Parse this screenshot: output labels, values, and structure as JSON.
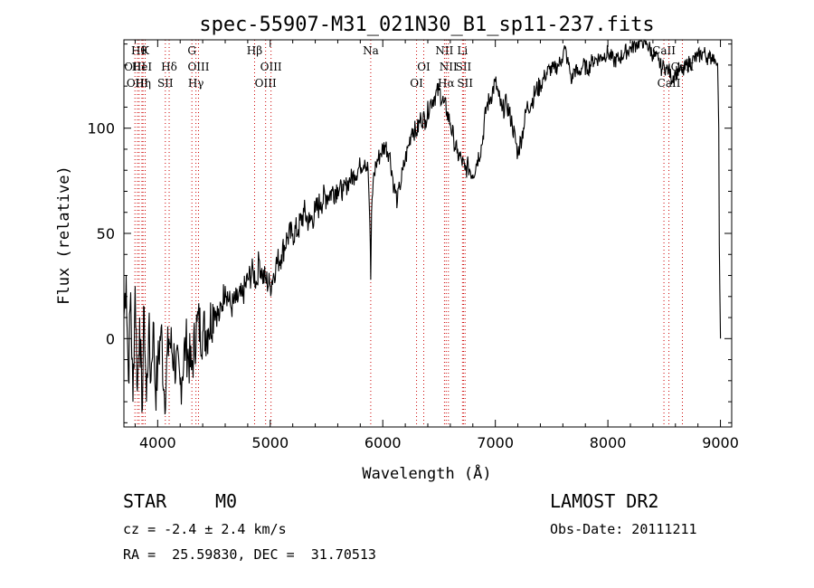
{
  "chart_data": {
    "type": "line",
    "title": "spec-55907-M31_021N30_B1_sp11-237.fits",
    "xlabel": "Wavelength (Å)",
    "ylabel": "Flux (relative)",
    "xlim": [
      3700,
      9100
    ],
    "ylim": [
      -42,
      142
    ],
    "xticks": [
      4000,
      5000,
      6000,
      7000,
      8000,
      9000
    ],
    "yticks": [
      0,
      50,
      100
    ],
    "grid": false,
    "line_color": "#000000",
    "marker_color": "#cc0000",
    "series": [
      {
        "x": [
          3700,
          3720,
          3740,
          3760,
          3780,
          3800,
          3820,
          3840,
          3860,
          3880,
          3900,
          3920,
          3940,
          3960,
          3980,
          4000,
          4030,
          4060,
          4100,
          4150,
          4200,
          4250,
          4300,
          4350,
          4400,
          4450,
          4500,
          4550,
          4600,
          4650,
          4700,
          4750,
          4800,
          4850,
          4880,
          4900,
          4930,
          4960,
          5000,
          5050,
          5100,
          5150,
          5200,
          5250,
          5300,
          5350,
          5400,
          5450,
          5500,
          5550,
          5600,
          5650,
          5700,
          5750,
          5800,
          5840,
          5870,
          5885,
          5893,
          5900,
          5915,
          5940,
          5980,
          6020,
          6060,
          6100,
          6130,
          6150,
          6180,
          6200,
          6230,
          6260,
          6300,
          6340,
          6380,
          6420,
          6460,
          6500,
          6540,
          6570,
          6600,
          6630,
          6660,
          6700,
          6730,
          6760,
          6800,
          6840,
          6880,
          6920,
          6960,
          7000,
          7030,
          7060,
          7100,
          7150,
          7200,
          7250,
          7280,
          7320,
          7360,
          7400,
          7440,
          7480,
          7520,
          7560,
          7590,
          7620,
          7640,
          7660,
          7680,
          7700,
          7740,
          7780,
          7820,
          7860,
          7900,
          7950,
          8000,
          8050,
          8100,
          8150,
          8200,
          8250,
          8300,
          8350,
          8400,
          8450,
          8480,
          8500,
          8520,
          8540,
          8560,
          8600,
          8640,
          8662,
          8700,
          8750,
          8800,
          8850,
          8900,
          8940,
          8965,
          8975,
          8985,
          8990,
          9000
        ],
        "y": [
          10,
          30,
          -20,
          22,
          -30,
          25,
          -25,
          10,
          -35,
          15,
          -30,
          5,
          -20,
          8,
          -25,
          -15,
          5,
          -28,
          0,
          -10,
          -22,
          -2,
          -15,
          8,
          3,
          5,
          15,
          10,
          25,
          15,
          18,
          20,
          28,
          32,
          26,
          38,
          30,
          28,
          25,
          35,
          40,
          48,
          50,
          52,
          60,
          55,
          60,
          65,
          68,
          70,
          72,
          70,
          75,
          78,
          82,
          85,
          80,
          55,
          28,
          60,
          75,
          83,
          88,
          92,
          88,
          72,
          65,
          72,
          80,
          85,
          92,
          100,
          98,
          105,
          104,
          112,
          115,
          118,
          112,
          108,
          102,
          95,
          88,
          85,
          80,
          82,
          78,
          85,
          92,
          110,
          115,
          122,
          115,
          108,
          112,
          102,
          88,
          100,
          110,
          112,
          118,
          120,
          125,
          128,
          128,
          130,
          133,
          138,
          132,
          128,
          122,
          128,
          126,
          130,
          128,
          132,
          133,
          134,
          136,
          132,
          133,
          136,
          138,
          140,
          142,
          140,
          135,
          132,
          128,
          130,
          128,
          128,
          124,
          126,
          128,
          126,
          130,
          132,
          134,
          136,
          133,
          135,
          130,
          131,
          100,
          45,
          0
        ]
      }
    ],
    "line_markers": [
      {
        "x": 3798,
        "label": "OIII",
        "row": 1
      },
      {
        "x": 3820,
        "label": "OIII",
        "row": 2
      },
      {
        "x": 3835,
        "label": "Hθ",
        "row": 0
      },
      {
        "x": 3860,
        "label": "HeI",
        "row": 1
      },
      {
        "x": 3870,
        "label": "Hη",
        "row": 2
      },
      {
        "x": 3889,
        "label": "K",
        "row": 0
      },
      {
        "x": 4068,
        "label": "SII",
        "row": 2
      },
      {
        "x": 4102,
        "label": "Hδ",
        "row": 1
      },
      {
        "x": 4304,
        "label": "G",
        "row": 0
      },
      {
        "x": 4340,
        "label": "Hγ",
        "row": 2
      },
      {
        "x": 4363,
        "label": "OIII",
        "row": 1
      },
      {
        "x": 4861,
        "label": "Hβ",
        "row": 0
      },
      {
        "x": 4959,
        "label": "OIII",
        "row": 2
      },
      {
        "x": 5007,
        "label": "OIII",
        "row": 1
      },
      {
        "x": 5893,
        "label": "Na",
        "row": 0
      },
      {
        "x": 6300,
        "label": "OI",
        "row": 2
      },
      {
        "x": 6364,
        "label": "OI",
        "row": 1
      },
      {
        "x": 6548,
        "label": "NII",
        "row": 0
      },
      {
        "x": 6563,
        "label": "Hα",
        "row": 2
      },
      {
        "x": 6583,
        "label": "NII",
        "row": 1
      },
      {
        "x": 6708,
        "label": "Li",
        "row": 0
      },
      {
        "x": 6717,
        "label": "SII",
        "row": 1
      },
      {
        "x": 6731,
        "label": "SII",
        "row": 2
      },
      {
        "x": 8498,
        "label": "CaII",
        "row": 0
      },
      {
        "x": 8542,
        "label": "CaII",
        "row": 2
      },
      {
        "x": 8662,
        "label": "CaII",
        "row": 1
      }
    ]
  },
  "info": {
    "class": "STAR",
    "subclass": "M0",
    "survey": "LAMOST DR2",
    "redshift": "cz = -2.4 ± 2.4 km/s",
    "obs_date": "Obs-Date: 20111211",
    "coords": "RA =  25.59830, DEC =  31.70513"
  }
}
